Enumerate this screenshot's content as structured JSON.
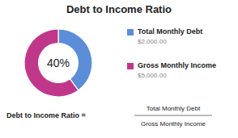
{
  "chart_data": {
    "type": "pie",
    "title": "Debt to Income Ratio",
    "categories": [
      "Total Monthly Debt",
      "Gross Monthly Income"
    ],
    "values": [
      40,
      60
    ],
    "colors": [
      "#5b8dd9",
      "#c0378a"
    ],
    "legend": "right",
    "annotations": [
      "40%",
      "$2,000.00",
      "$5,000.00",
      "Debt to Income Ratio  =",
      "Total Monthly Debt",
      "Gross Monthly Income"
    ]
  }
}
